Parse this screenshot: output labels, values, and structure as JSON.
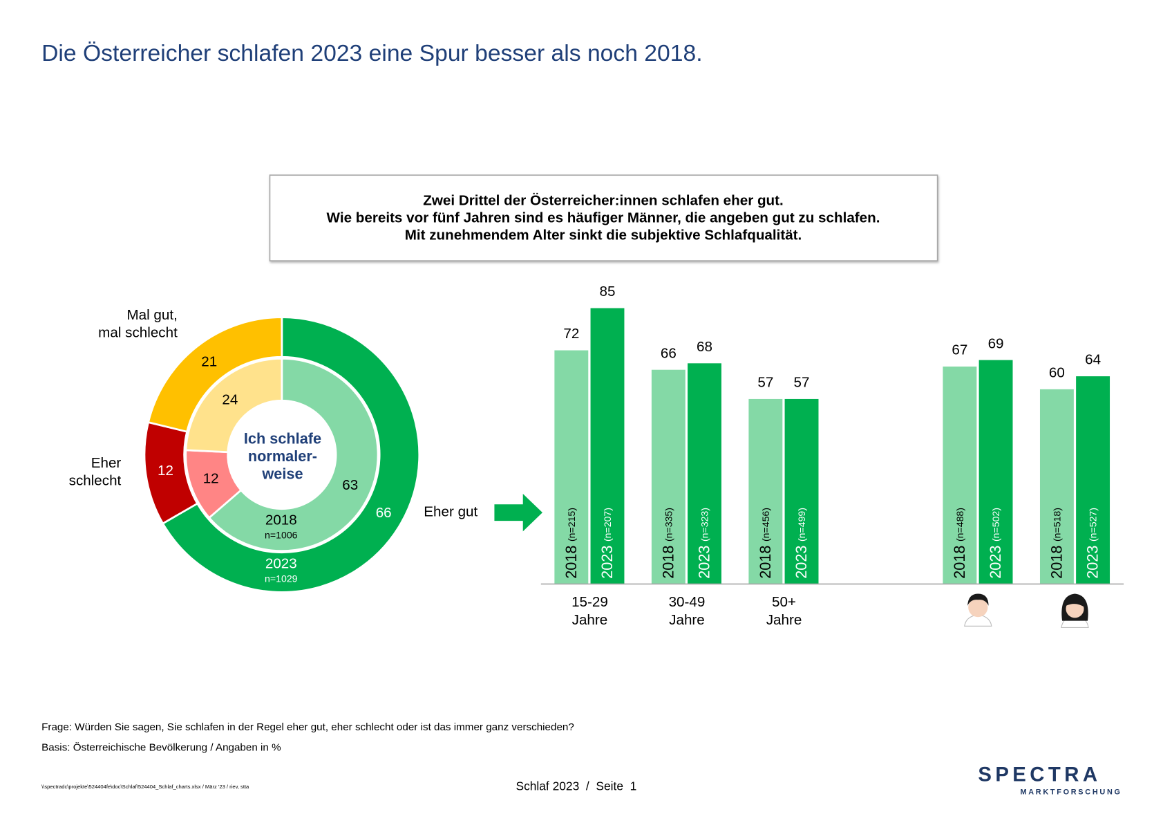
{
  "title": "Die Österreicher schlafen 2023 eine Spur besser als noch 2018.",
  "callout": [
    "Zwei Drittel der Österreicher:innen schlafen eher gut.",
    "Wie bereits vor fünf Jahren sind es häufiger Männer, die angeben gut zu schlafen.",
    "Mit zunehmendem Alter sinkt die subjektive Schlafqualität."
  ],
  "chart_data": [
    {
      "type": "donut",
      "center_label": [
        "Ich schlafe",
        "normaler-",
        "weise"
      ],
      "categories": [
        [
          "Eher gut"
        ],
        [
          "Eher",
          "schlecht"
        ],
        [
          "Mal gut,",
          "mal schlecht"
        ]
      ],
      "series": [
        {
          "name": "2023",
          "sample_size": "n=1029",
          "values": [
            66,
            12,
            21
          ],
          "colors": [
            "#00b050",
            "#c00000",
            "#ffc000"
          ]
        },
        {
          "name": "2018",
          "sample_size": "n=1006",
          "values": [
            63,
            12,
            24
          ],
          "colors": [
            "#84d9a6",
            "#ff8585",
            "#ffe28c"
          ]
        }
      ]
    },
    {
      "type": "bar",
      "categories": [
        [
          "15-29",
          "Jahre"
        ],
        [
          "30-49",
          "Jahre"
        ],
        [
          "50+",
          "Jahre"
        ],
        null,
        null,
        null
      ],
      "ylim": [
        0,
        100
      ],
      "series": [
        {
          "name": "2018",
          "color": "#84d9a6",
          "values": [
            72,
            66,
            57,
            null,
            67,
            60
          ],
          "sample_sizes": [
            "(n=215)",
            "(n=335)",
            "(n=456)",
            null,
            "(n=488)",
            "(n=518)"
          ]
        },
        {
          "name": "2023",
          "color": "#00b050",
          "values": [
            85,
            68,
            57,
            null,
            69,
            64
          ],
          "sample_sizes": [
            "(n=207)",
            "(n=323)",
            "(n=499)",
            null,
            "(n=502)",
            "(n=527)"
          ]
        }
      ]
    }
  ],
  "footer": {
    "question": "Frage: Würden Sie sagen, Sie schlafen in der Regel eher gut, eher schlecht oder ist das immer ganz verschieden?",
    "basis": "Basis: Österreichische Bevölkerung / Angaben in %",
    "path": "\\\\spectradc\\projekte\\524404fe\\doc\\Schlaf\\524404_Schlaf_charts.xlsx / März '23 / riev, stta",
    "page": "Schlaf 2023  /  Seite  1",
    "logo": "SPECTRA",
    "logo_sub": "MARKTFORSCHUNG"
  }
}
